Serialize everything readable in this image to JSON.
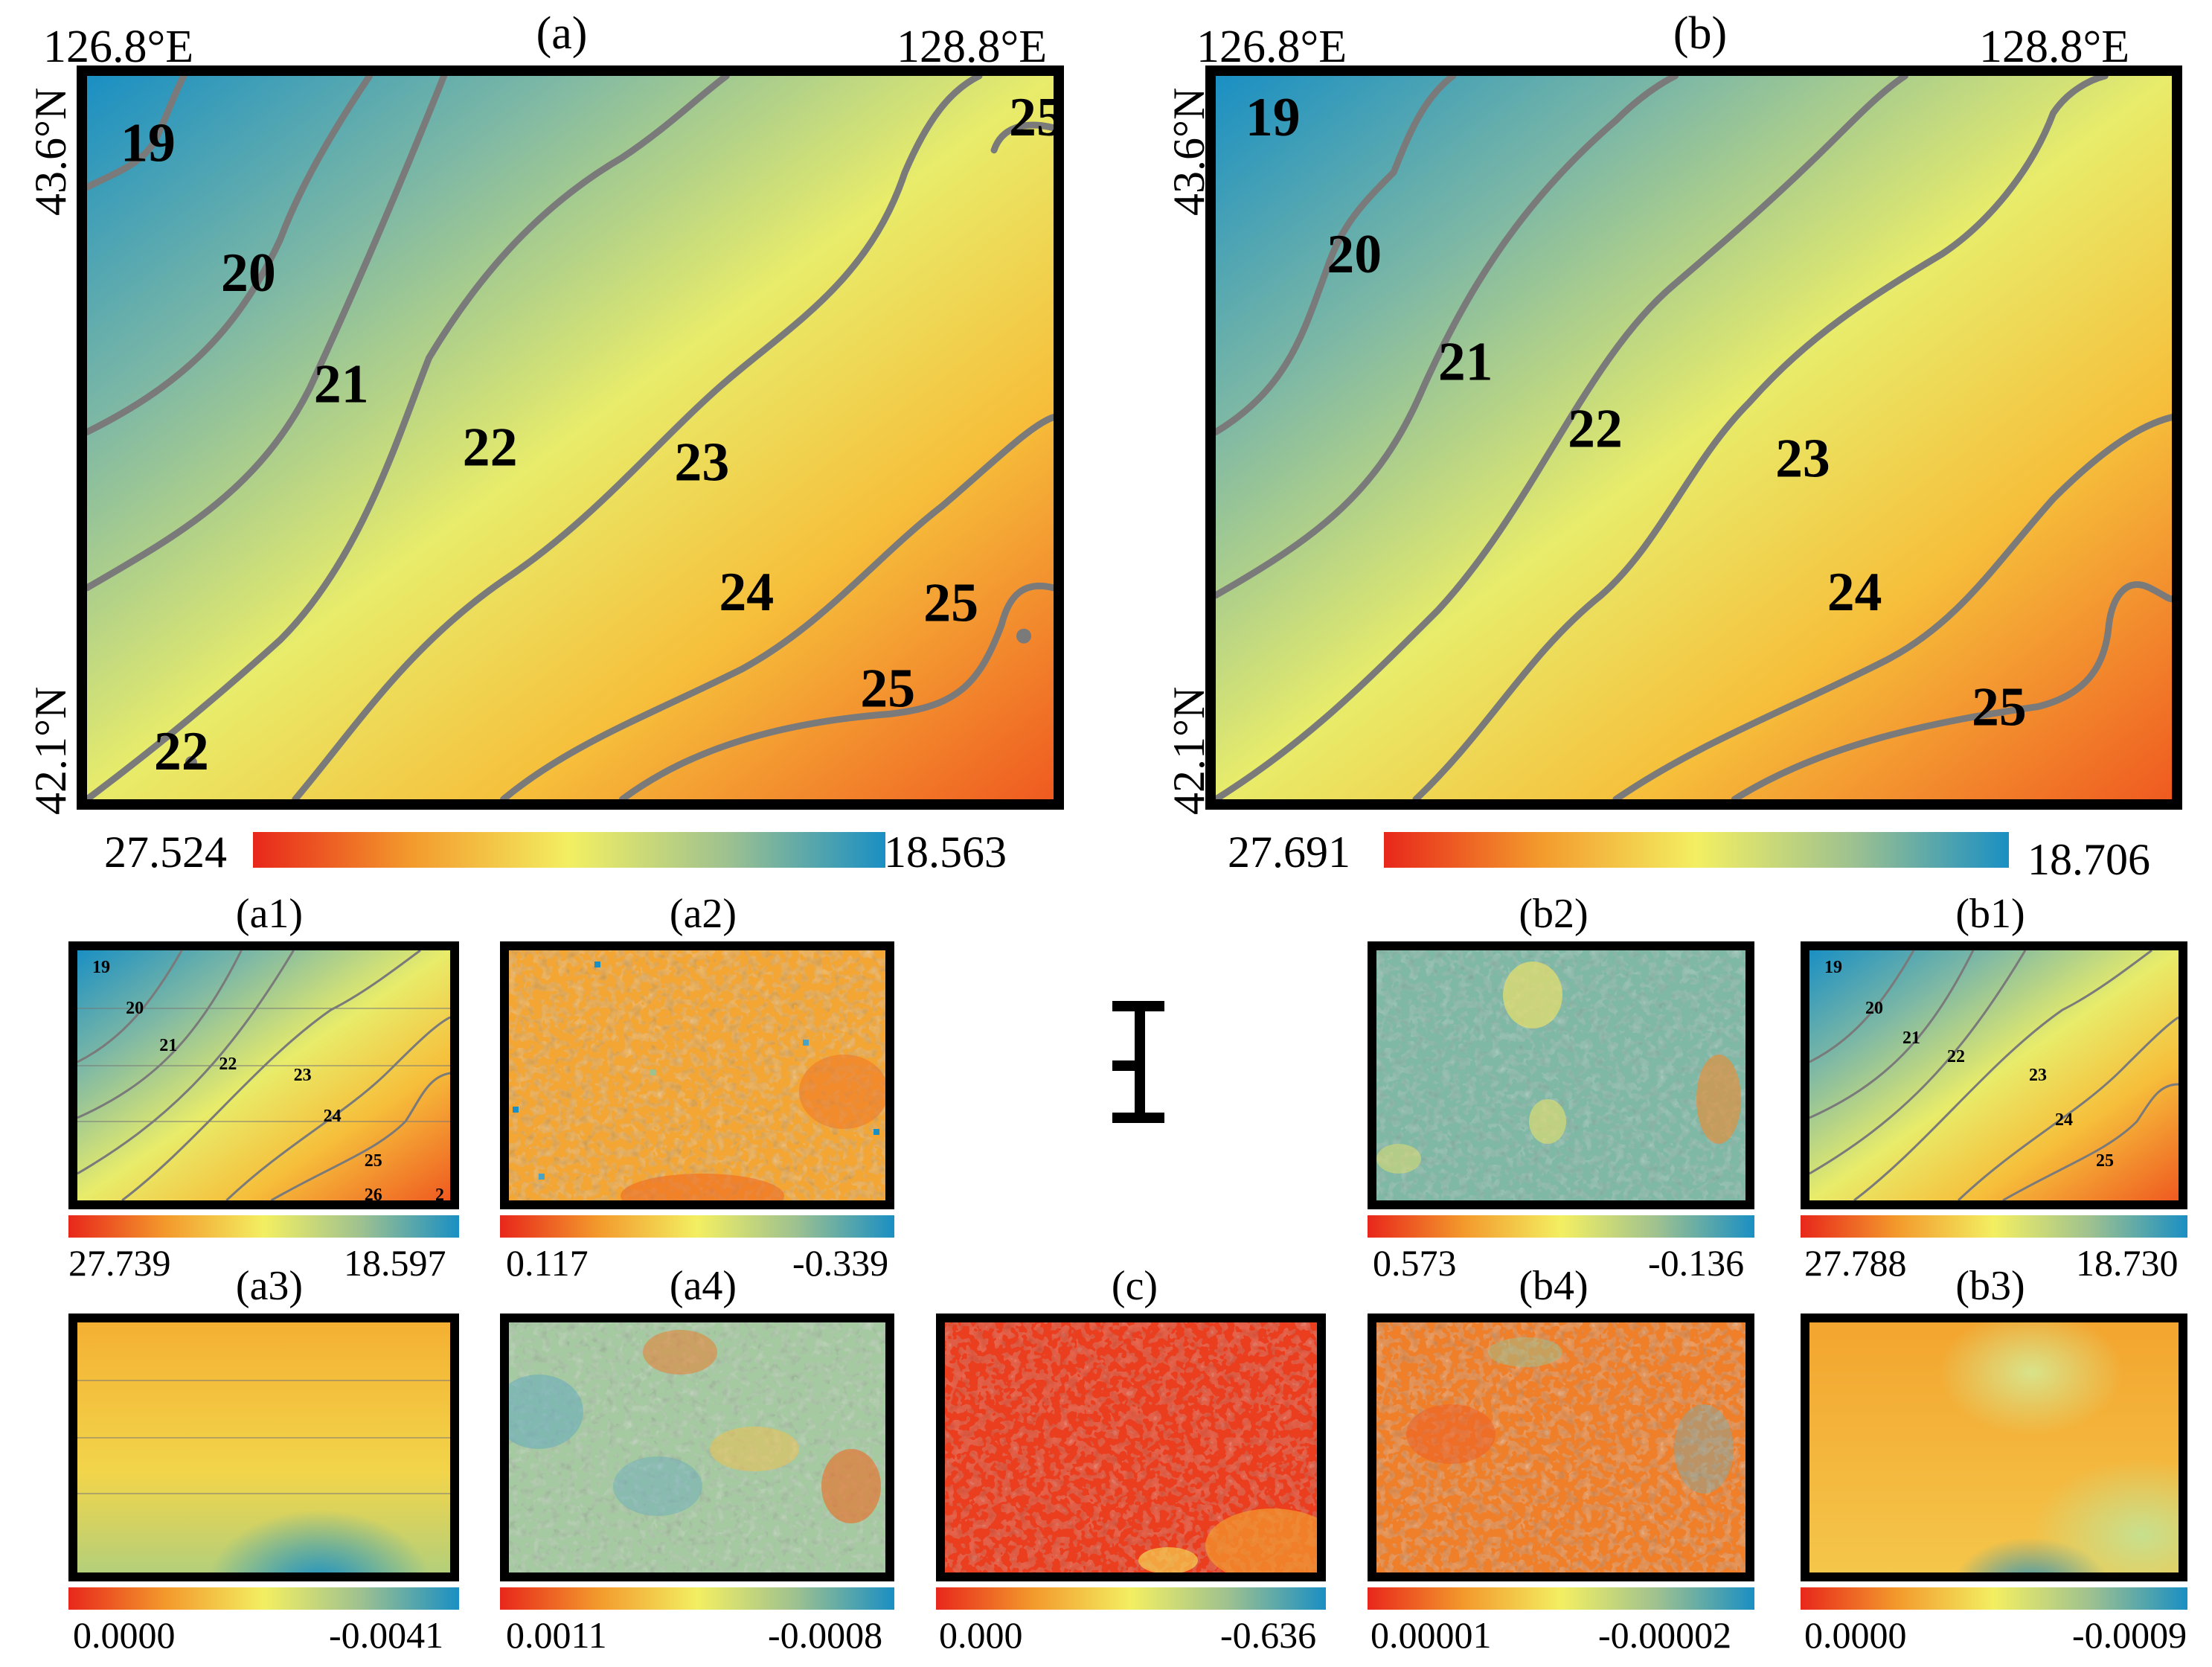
{
  "colors": {
    "red": "#e8271b",
    "orange": "#f39a2c",
    "yellow": "#f3ef62",
    "green": "#9ec190",
    "blue": "#1a8fc3",
    "contour": "#7a7a7a"
  },
  "panels": {
    "a": {
      "title": "(a)",
      "lon_left": "126.8°E",
      "lon_right": "128.8°E",
      "lat_top": "43.6°N",
      "lat_bottom": "42.1°N",
      "contours": [
        "19",
        "20",
        "21",
        "22",
        "23",
        "24",
        "25",
        "25",
        "22",
        "25"
      ],
      "colorbar": {
        "min": "27.524",
        "max": "18.563"
      }
    },
    "b": {
      "title": "(b)",
      "lon_left": "126.8°E",
      "lon_right": "128.8°E",
      "lat_top": "43.6°N",
      "lat_bottom": "42.1°N",
      "contours": [
        "19",
        "20",
        "21",
        "22",
        "23",
        "24",
        "25"
      ],
      "colorbar": {
        "min": "27.691",
        "max": "18.706"
      }
    },
    "a1": {
      "title": "(a1)",
      "contours": [
        "19",
        "20",
        "21",
        "22",
        "23",
        "24",
        "25",
        "26",
        "2"
      ],
      "colorbar": {
        "min": "27.739",
        "max": "18.597"
      }
    },
    "a2": {
      "title": "(a2)",
      "colorbar": {
        "min": "0.117",
        "max": "-0.339"
      }
    },
    "a3": {
      "title": "(a3)",
      "colorbar": {
        "min": "0.0000",
        "max": "-0.0041"
      }
    },
    "a4": {
      "title": "(a4)",
      "colorbar": {
        "min": "0.0011",
        "max": "-0.0008"
      }
    },
    "c": {
      "title": "(c)",
      "colorbar": {
        "min": "0.000",
        "max": "-0.636"
      }
    },
    "b1": {
      "title": "(b1)",
      "contours": [
        "19",
        "20",
        "21",
        "22",
        "23",
        "24",
        "25"
      ],
      "colorbar": {
        "min": "27.788",
        "max": "18.730"
      }
    },
    "b2": {
      "title": "(b2)",
      "colorbar": {
        "min": "0.573",
        "max": "-0.136"
      }
    },
    "b3": {
      "title": "(b3)",
      "colorbar": {
        "min": "0.0000",
        "max": "-0.0009"
      }
    },
    "b4": {
      "title": "(b4)",
      "colorbar": {
        "min": "0.00001",
        "max": "-0.00002"
      }
    }
  },
  "symbol": "decomposition-symbol"
}
